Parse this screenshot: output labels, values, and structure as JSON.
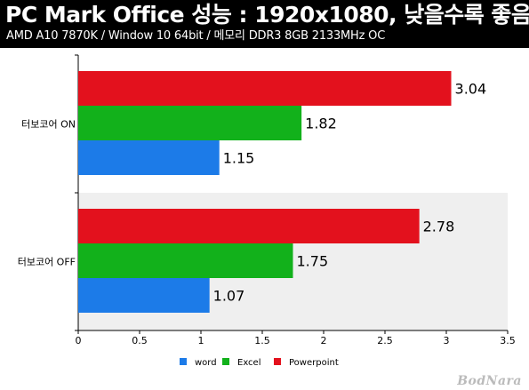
{
  "header": {
    "title": "PC Mark Office 성능 : 1920x1080, 낮을수록 좋음",
    "subtitle": "AMD A10 7870K / Window 10 64bit / 메모리 DDR3 8GB 2133MHz OC"
  },
  "watermark": "BodNara",
  "chart_data": {
    "type": "bar",
    "orientation": "horizontal",
    "categories": [
      "터보코어 ON",
      "터보코어 OFF"
    ],
    "series": [
      {
        "name": "word",
        "color": "#1c7be8",
        "values": [
          1.15,
          1.07
        ]
      },
      {
        "name": "Excel",
        "color": "#12b11b",
        "values": [
          1.82,
          1.75
        ]
      },
      {
        "name": "Powerpoint",
        "color": "#e3111d",
        "values": [
          3.04,
          2.78
        ]
      }
    ],
    "xlim": [
      0,
      3.5
    ],
    "xticks": [
      0,
      0.5,
      1,
      1.5,
      2,
      2.5,
      3,
      3.5
    ],
    "xtick_labels": [
      "0",
      "0.5",
      "1",
      "1.5",
      "2",
      "2.5",
      "3",
      "3.5"
    ],
    "legend_position": "bottom",
    "colors": {
      "band_alt": "#efefef"
    }
  }
}
